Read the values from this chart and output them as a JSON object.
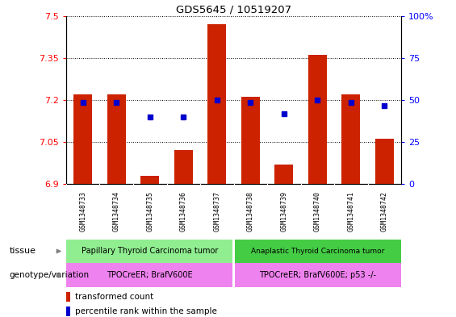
{
  "title": "GDS5645 / 10519207",
  "samples": [
    "GSM1348733",
    "GSM1348734",
    "GSM1348735",
    "GSM1348736",
    "GSM1348737",
    "GSM1348738",
    "GSM1348739",
    "GSM1348740",
    "GSM1348741",
    "GSM1348742"
  ],
  "bar_tops": [
    7.22,
    7.22,
    6.93,
    7.02,
    7.47,
    7.21,
    6.97,
    7.36,
    7.22,
    7.06
  ],
  "bar_bottom": 6.9,
  "blue_y": [
    7.19,
    7.19,
    7.14,
    7.14,
    7.2,
    7.19,
    7.15,
    7.2,
    7.19,
    7.18
  ],
  "ylim_left": [
    6.9,
    7.5
  ],
  "ylim_right": [
    0,
    100
  ],
  "yticks_left": [
    6.9,
    7.05,
    7.2,
    7.35,
    7.5
  ],
  "yticks_right": [
    0,
    25,
    50,
    75,
    100
  ],
  "ytick_labels_left": [
    "6.9",
    "7.05",
    "7.2",
    "7.35",
    "7.5"
  ],
  "ytick_labels_right": [
    "0",
    "25",
    "50",
    "75",
    "100%"
  ],
  "bar_color": "#cc2200",
  "blue_color": "#0000cc",
  "tissue_group1": "Papillary Thyroid Carcinoma tumor",
  "tissue_group2": "Anaplastic Thyroid Carcinoma tumor",
  "genotype_group1": "TPOCreER; BrafV600E",
  "genotype_group2": "TPOCreER; BrafV600E; p53 -/-",
  "tissue_color1": "#90ee90",
  "tissue_color2": "#44cc44",
  "genotype_color": "#ee82ee",
  "row_label_tissue": "tissue",
  "row_label_genotype": "genotype/variation",
  "legend_bar": "transformed count",
  "legend_blue": "percentile rank within the sample",
  "bg_color": "#ffffff",
  "tick_bg": "#cccccc",
  "n_group1": 5,
  "n_group2": 5
}
